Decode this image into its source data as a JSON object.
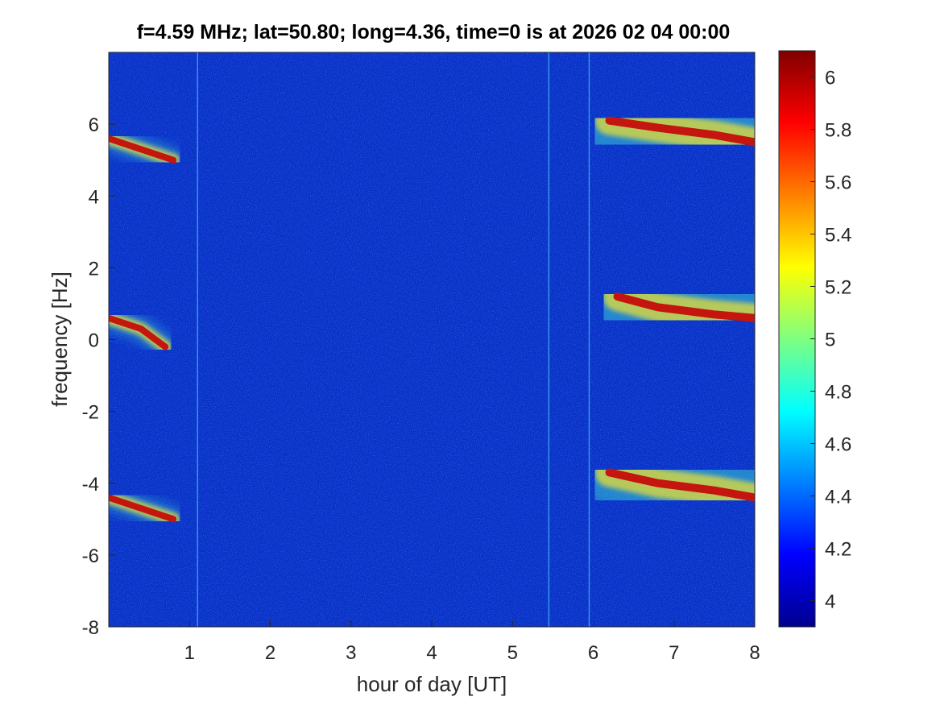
{
  "chart_data": {
    "type": "heatmap",
    "title": "f=4.59 MHz;  lat=50.80; long=4.36, time=0 is at 2026 02 04 00:00",
    "xlabel": "hour of day [UT]",
    "ylabel": "frequency [Hz]",
    "xlim": [
      0,
      8
    ],
    "ylim": [
      -8,
      8
    ],
    "xticks": [
      "1",
      "2",
      "3",
      "4",
      "5",
      "6",
      "7",
      "8"
    ],
    "yticks": [
      "-8",
      "-6",
      "-4",
      "-2",
      "0",
      "2",
      "4",
      "6"
    ],
    "colormap": "jet",
    "clim": [
      3.9,
      6.1
    ],
    "colorbar_ticks": [
      "4",
      "4.2",
      "4.4",
      "4.6",
      "4.8",
      "5",
      "5.2",
      "5.4",
      "5.6",
      "5.8",
      "6"
    ],
    "traces": [
      {
        "x": [
          0,
          0.4,
          0.8
        ],
        "y": [
          5.6,
          5.3,
          5.0
        ]
      },
      {
        "x": [
          0,
          0.4,
          0.7
        ],
        "y": [
          0.6,
          0.3,
          -0.2
        ]
      },
      {
        "x": [
          0,
          0.4,
          0.8
        ],
        "y": [
          -4.4,
          -4.7,
          -5.0
        ]
      },
      {
        "x": [
          6.2,
          6.8,
          7.5,
          8
        ],
        "y": [
          6.1,
          5.9,
          5.7,
          5.5
        ]
      },
      {
        "x": [
          6.3,
          6.8,
          7.5,
          8
        ],
        "y": [
          1.2,
          0.9,
          0.7,
          0.6
        ]
      },
      {
        "x": [
          6.2,
          6.8,
          7.5,
          8
        ],
        "y": [
          -3.7,
          -4.0,
          -4.2,
          -4.4
        ]
      }
    ],
    "vertical_lines_x": [
      1.1,
      5.45,
      5.95
    ]
  },
  "colors": {
    "background": "#ffffff",
    "axis": "#262626"
  }
}
